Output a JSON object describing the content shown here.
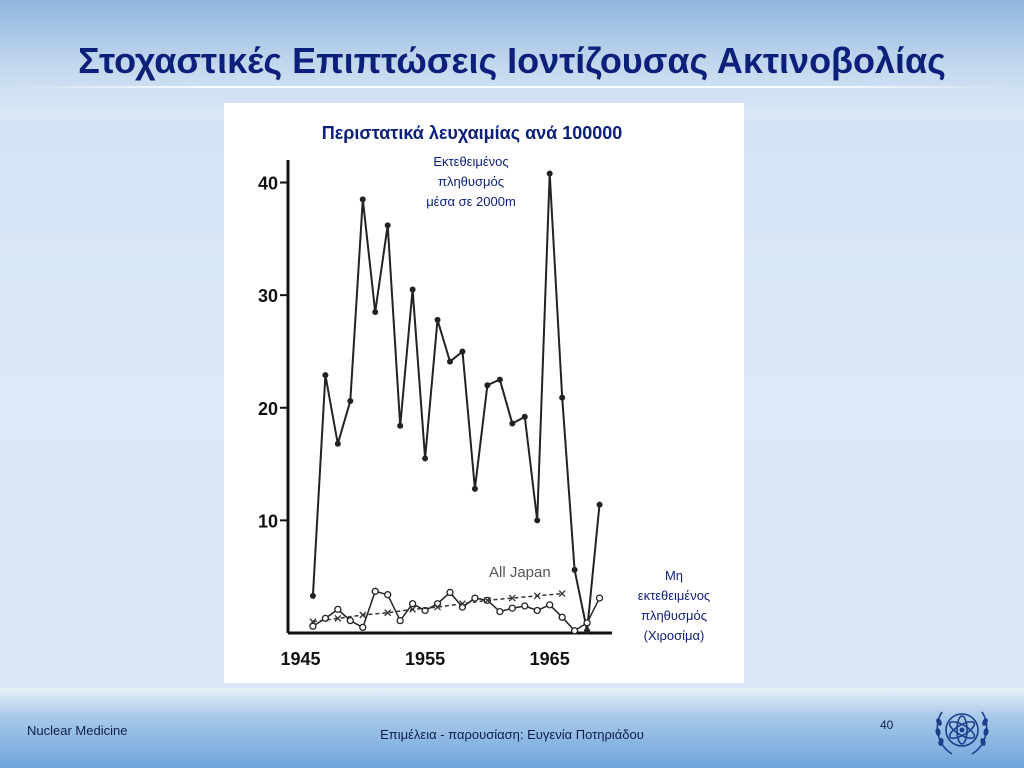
{
  "slide": {
    "title": "Στοχαστικές Επιπτώσεις Ιοντίζουσας Ακτινοβολίας",
    "footer_left": "Nuclear Medicine",
    "footer_center": "Επιμέλεια - παρουσίαση: Ευγενία Ποτηριάδου",
    "page_number": "40",
    "logo_icon": "un-emblem-icon"
  },
  "chart_data": {
    "type": "line",
    "title": "Περιστατικά λευχαιμίας ανά 100000",
    "xlim": [
      1944,
      1970
    ],
    "ylim": [
      0,
      42
    ],
    "x_ticks": [
      {
        "value": 1945,
        "label": "1945"
      },
      {
        "value": 1955,
        "label": "1955"
      },
      {
        "value": 1965,
        "label": "1965"
      }
    ],
    "y_ticks": [
      {
        "value": 10,
        "label": "10"
      },
      {
        "value": 20,
        "label": "20"
      },
      {
        "value": 30,
        "label": "30"
      },
      {
        "value": 40,
        "label": "40"
      }
    ],
    "series": [
      {
        "name": "",
        "marker": "filled-circle",
        "color": "#222222",
        "x": [
          1946,
          1947,
          1948,
          1949,
          1950,
          1951,
          1952,
          1953,
          1954,
          1955,
          1956,
          1957,
          1958,
          1959,
          1960,
          1961,
          1962,
          1963,
          1964,
          1965,
          1966,
          1967,
          1968,
          1969
        ],
        "y": [
          3.3,
          22.9,
          16.8,
          20.6,
          38.5,
          28.5,
          36.2,
          18.4,
          30.5,
          15.5,
          27.8,
          24.1,
          25.0,
          12.8,
          22.0,
          22.5,
          18.6,
          19.2,
          10.0,
          40.8,
          20.9,
          5.6,
          0.2,
          11.4
        ]
      },
      {
        "name": "",
        "marker": "open-circle",
        "color": "#222222",
        "x": [
          1946,
          1947,
          1948,
          1949,
          1950,
          1951,
          1952,
          1953,
          1954,
          1955,
          1956,
          1957,
          1958,
          1959,
          1960,
          1961,
          1962,
          1963,
          1964,
          1965,
          1966,
          1967,
          1968,
          1969
        ],
        "y": [
          0.6,
          1.3,
          2.1,
          1.1,
          0.5,
          3.7,
          3.4,
          1.1,
          2.6,
          2.0,
          2.6,
          3.6,
          2.3,
          3.1,
          2.9,
          1.9,
          2.2,
          2.4,
          2.0,
          2.5,
          1.4,
          0.2,
          0.9,
          3.1
        ]
      },
      {
        "name": "All Japan",
        "marker": "x",
        "color": "#333333",
        "x": [
          1946,
          1948,
          1950,
          1952,
          1954,
          1956,
          1958,
          1960,
          1962,
          1964,
          1966
        ],
        "y": [
          1.0,
          1.3,
          1.6,
          1.8,
          2.1,
          2.3,
          2.6,
          2.9,
          3.1,
          3.3,
          3.5
        ]
      }
    ],
    "annotations": [
      {
        "text": "Εκτεθειμένος",
        "target": "exposed"
      },
      {
        "text": "πληθυσμός",
        "target": "exposed"
      },
      {
        "text": "μέσα σε 2000m",
        "target": "exposed"
      },
      {
        "text": "All Japan",
        "target": "all-japan"
      },
      {
        "text": "Μη",
        "target": "unexposed"
      },
      {
        "text": "εκτεθειμένος",
        "target": "unexposed"
      },
      {
        "text": "πληθυσμός",
        "target": "unexposed"
      },
      {
        "text": "(Χιροσίμα)",
        "target": "unexposed"
      }
    ],
    "grid": false,
    "legend": "none"
  }
}
